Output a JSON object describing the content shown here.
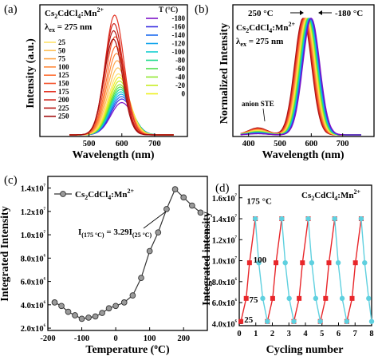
{
  "chart_data": [
    {
      "panel": "(a)",
      "type": "line",
      "title": "",
      "xlabel": "Wavelength (nm)",
      "ylabel": "Intensity (a.u.)",
      "xlim": [
        350,
        800
      ],
      "x_ticks": [
        500,
        600,
        700
      ],
      "annotation_material": "Cs2CdCl4:Mn2+",
      "annotation_excitation": "λex = 275 nm",
      "legend_title": "T (°C)",
      "legend_left": [
        "25",
        "50",
        "75",
        "100",
        "125",
        "150",
        "175",
        "200",
        "225",
        "250"
      ],
      "legend_right": [
        "-180",
        "-160",
        "-140",
        "-120",
        "-100",
        "-80",
        "-60",
        "-40",
        "-20",
        "0"
      ],
      "series": [
        {
          "name": "-180",
          "peak_nm": 600,
          "rel_height": 0.27,
          "color": "#7d12c8"
        },
        {
          "name": "-160",
          "peak_nm": 600,
          "rel_height": 0.3,
          "color": "#3b2fe0"
        },
        {
          "name": "-140",
          "peak_nm": 599,
          "rel_height": 0.32,
          "color": "#1f6cf0"
        },
        {
          "name": "-120",
          "peak_nm": 598,
          "rel_height": 0.34,
          "color": "#16a6ec"
        },
        {
          "name": "-100",
          "peak_nm": 597,
          "rel_height": 0.36,
          "color": "#14cfd0"
        },
        {
          "name": "-80",
          "peak_nm": 596,
          "rel_height": 0.38,
          "color": "#1ad98a"
        },
        {
          "name": "-60",
          "peak_nm": 595,
          "rel_height": 0.4,
          "color": "#4ee04a"
        },
        {
          "name": "-40",
          "peak_nm": 594,
          "rel_height": 0.42,
          "color": "#8fe630"
        },
        {
          "name": "-20",
          "peak_nm": 593,
          "rel_height": 0.45,
          "color": "#c8ec24"
        },
        {
          "name": "0",
          "peak_nm": 592,
          "rel_height": 0.48,
          "color": "#eef01e"
        },
        {
          "name": "25",
          "peak_nm": 590,
          "rel_height": 0.51,
          "color": "#ffe36a"
        },
        {
          "name": "50",
          "peak_nm": 588,
          "rel_height": 0.56,
          "color": "#ffc25a"
        },
        {
          "name": "75",
          "peak_nm": 586,
          "rel_height": 0.62,
          "color": "#ffa64a"
        },
        {
          "name": "100",
          "peak_nm": 584,
          "rel_height": 0.68,
          "color": "#ff8a3c"
        },
        {
          "name": "125",
          "peak_nm": 582,
          "rel_height": 0.74,
          "color": "#ff6e32"
        },
        {
          "name": "150",
          "peak_nm": 580,
          "rel_height": 0.82,
          "color": "#f5522a"
        },
        {
          "name": "175",
          "peak_nm": 578,
          "rel_height": 1.0,
          "color": "#e33222"
        },
        {
          "name": "200",
          "peak_nm": 576,
          "rel_height": 0.93,
          "color": "#cf241c"
        },
        {
          "name": "225",
          "peak_nm": 575,
          "rel_height": 0.87,
          "color": "#b81816"
        },
        {
          "name": "250",
          "peak_nm": 574,
          "rel_height": 0.8,
          "color": "#a30f10"
        }
      ]
    },
    {
      "panel": "(b)",
      "type": "line",
      "title": "",
      "xlabel": "Wavelength (nm)",
      "ylabel": "Normalized Intensity",
      "xlim": [
        350,
        800
      ],
      "x_ticks": [
        400,
        500,
        600,
        700
      ],
      "annotation_material": "Cs2CdCl4:Mn2+",
      "annotation_excitation": "λex = 275 nm",
      "annotation_hot": "250 °C",
      "annotation_cold": "-180 °C",
      "annotation_ste": "anion STE",
      "peak_shift_nm": [
        574,
        600
      ]
    },
    {
      "panel": "(c)",
      "type": "scatter",
      "title": "",
      "xlabel": "Temperature (°C)",
      "ylabel": "Integrated Intensity",
      "xlim": [
        -200,
        270
      ],
      "ylim": [
        1800000.0,
        15000000.0
      ],
      "x_ticks": [
        "-200",
        "-100",
        "0",
        "100",
        "200"
      ],
      "y_ticks": [
        {
          "value": 2000000.0,
          "label": "2.0x10⁶"
        },
        {
          "value": 4000000.0,
          "label": "4.0x10⁶"
        },
        {
          "value": 6000000.0,
          "label": "6.0x10⁶"
        },
        {
          "value": 8000000.0,
          "label": "8.0x10⁶"
        },
        {
          "value": 10000000.0,
          "label": "1.0x10⁷"
        },
        {
          "value": 12000000.0,
          "label": "1.2x10⁷"
        },
        {
          "value": 14000000.0,
          "label": "1.4x10⁷"
        }
      ],
      "legend": "Cs2CdCl4:Mn2+",
      "annotation_ratio": "I(175 °C) = 3.29I(25 °C)",
      "series": [
        {
          "name": "Cs2CdCl4:Mn2+",
          "x": [
            -180,
            -160,
            -140,
            -120,
            -100,
            -80,
            -60,
            -40,
            -20,
            0,
            25,
            50,
            75,
            100,
            125,
            150,
            175,
            200,
            225,
            250
          ],
          "y": [
            4200000.0,
            3900000.0,
            3400000.0,
            3100000.0,
            2800000.0,
            2900000.0,
            3000000.0,
            3300000.0,
            3700000.0,
            3900000.0,
            4200000.0,
            4800000.0,
            6300000.0,
            8600000.0,
            10200000.0,
            12200000.0,
            13900000.0,
            13200000.0,
            12500000.0,
            11900000.0
          ]
        }
      ]
    },
    {
      "panel": "(d)",
      "type": "line",
      "title": "",
      "xlabel": "Cycling number",
      "ylabel": "Integrated intensity",
      "xlim": [
        0,
        8
      ],
      "ylim": [
        3800000.0,
        17200000.0
      ],
      "x_ticks": [
        "0",
        "1",
        "2",
        "3",
        "4",
        "5",
        "6",
        "7",
        "8"
      ],
      "y_ticks": [
        {
          "value": 4000000.0,
          "label": "4.0x10⁶"
        },
        {
          "value": 6000000.0,
          "label": "6.0x10⁶"
        },
        {
          "value": 8000000.0,
          "label": "8.0x10⁶"
        },
        {
          "value": 10000000.0,
          "label": "1.0x10⁷"
        },
        {
          "value": 12000000.0,
          "label": "1.2x10⁷"
        },
        {
          "value": 14000000.0,
          "label": "1.4x10⁷"
        },
        {
          "value": 16000000.0,
          "label": "1.6x10⁷"
        }
      ],
      "annotation_material": "Cs2CdCl4:Mn2+",
      "temperature_labels": [
        {
          "text": "25",
          "x": 0.3,
          "y": 4100000.0
        },
        {
          "text": "75",
          "x": 0.6,
          "y": 6000000.0
        },
        {
          "text": "100",
          "x": 0.85,
          "y": 9800000.0
        },
        {
          "text": "175 °C",
          "x": 0.45,
          "y": 15400000.0
        }
      ],
      "series": [
        {
          "name": "heating",
          "color": "#e8262a",
          "marker": "square",
          "segments": [
            {
              "x": [
                0.1,
                0.42,
                0.62,
                0.97
              ],
              "y": [
                4200000.0,
                6400000.0,
                9800000.0,
                14000000.0
              ]
            },
            {
              "x": [
                1.7,
                2.02,
                2.22,
                2.57
              ],
              "y": [
                4200000.0,
                6400000.0,
                9800000.0,
                14000000.0
              ]
            },
            {
              "x": [
                3.3,
                3.62,
                3.82,
                4.17
              ],
              "y": [
                4200000.0,
                6400000.0,
                9800000.0,
                14000000.0
              ]
            },
            {
              "x": [
                4.9,
                5.22,
                5.42,
                5.77
              ],
              "y": [
                4200000.0,
                6400000.0,
                9800000.0,
                14000000.0
              ]
            },
            {
              "x": [
                6.5,
                6.82,
                7.02,
                7.37
              ],
              "y": [
                4200000.0,
                6400000.0,
                9800000.0,
                14000000.0
              ]
            }
          ]
        },
        {
          "name": "cooling",
          "color": "#5fd0df",
          "marker": "circle",
          "segments": [
            {
              "x": [
                0.97,
                1.18,
                1.42,
                1.7
              ],
              "y": [
                14000000.0,
                9800000.0,
                6400000.0,
                4200000.0
              ]
            },
            {
              "x": [
                2.57,
                2.78,
                3.02,
                3.3
              ],
              "y": [
                14000000.0,
                9800000.0,
                6400000.0,
                4200000.0
              ]
            },
            {
              "x": [
                4.17,
                4.38,
                4.62,
                4.9
              ],
              "y": [
                14000000.0,
                9800000.0,
                6400000.0,
                4200000.0
              ]
            },
            {
              "x": [
                5.77,
                5.98,
                6.22,
                6.5
              ],
              "y": [
                14000000.0,
                9800000.0,
                6400000.0,
                4200000.0
              ]
            },
            {
              "x": [
                7.37,
                7.58,
                7.82,
                8.0
              ],
              "y": [
                14000000.0,
                9800000.0,
                6400000.0,
                4200000.0
              ]
            }
          ]
        }
      ]
    }
  ]
}
